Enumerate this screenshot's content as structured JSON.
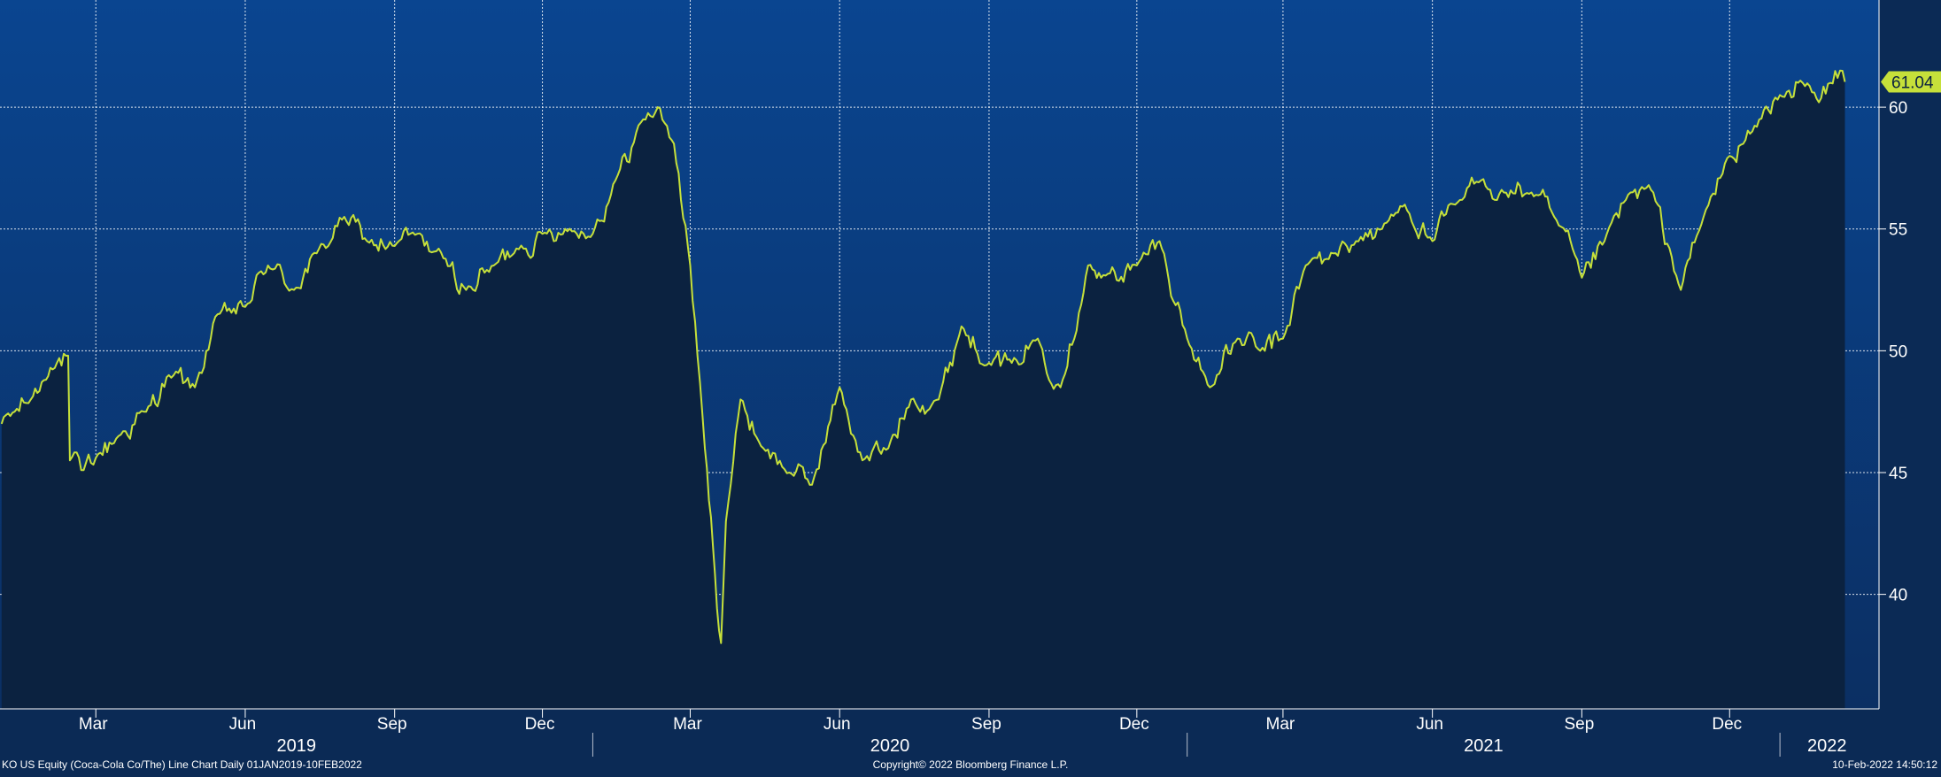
{
  "chart_data": {
    "type": "area",
    "series": [
      {
        "name": "",
        "x": [
          "2019-01-02",
          "2019-01-10",
          "2019-01-20",
          "2019-02-01",
          "2019-02-12",
          "2019-02-13",
          "2019-02-20",
          "2019-03-01",
          "2019-03-15",
          "2019-04-01",
          "2019-04-15",
          "2019-05-01",
          "2019-05-15",
          "2019-06-01",
          "2019-06-15",
          "2019-07-01",
          "2019-07-15",
          "2019-08-01",
          "2019-08-15",
          "2019-09-01",
          "2019-09-15",
          "2019-10-01",
          "2019-10-15",
          "2019-11-01",
          "2019-11-15",
          "2019-12-01",
          "2019-12-15",
          "2020-01-01",
          "2020-01-15",
          "2020-02-01",
          "2020-02-10",
          "2020-02-20",
          "2020-03-01",
          "2020-03-10",
          "2020-03-15",
          "2020-03-20",
          "2020-03-23",
          "2020-04-01",
          "2020-04-15",
          "2020-05-01",
          "2020-05-15",
          "2020-06-01",
          "2020-06-15",
          "2020-07-01",
          "2020-07-15",
          "2020-08-01",
          "2020-08-15",
          "2020-09-01",
          "2020-09-15",
          "2020-10-01",
          "2020-10-15",
          "2020-11-01",
          "2020-11-09",
          "2020-12-01",
          "2020-12-15",
          "2021-01-01",
          "2021-01-15",
          "2021-02-01",
          "2021-02-15",
          "2021-03-01",
          "2021-03-15",
          "2021-04-01",
          "2021-04-15",
          "2021-05-01",
          "2021-05-15",
          "2021-06-01",
          "2021-06-15",
          "2021-07-01",
          "2021-07-15",
          "2021-08-01",
          "2021-08-15",
          "2021-09-01",
          "2021-09-15",
          "2021-10-01",
          "2021-10-15",
          "2021-11-01",
          "2021-11-15",
          "2021-12-01",
          "2021-12-15",
          "2022-01-01",
          "2022-01-15",
          "2022-01-25",
          "2022-02-01",
          "2022-02-07",
          "2022-02-10"
        ],
        "y": [
          47.0,
          47.5,
          48.0,
          49.3,
          49.8,
          45.5,
          45.1,
          45.6,
          46.5,
          47.5,
          49.0,
          48.5,
          51.5,
          51.8,
          53.5,
          52.5,
          54.0,
          55.5,
          54.5,
          54.3,
          54.8,
          53.8,
          52.5,
          53.5,
          54.2,
          54.8,
          55.0,
          54.8,
          57.0,
          59.5,
          60.0,
          58.5,
          53.5,
          46.0,
          42.0,
          38.0,
          43.0,
          48.0,
          46.0,
          45.0,
          44.5,
          48.5,
          45.5,
          46.0,
          48.0,
          48.0,
          51.0,
          49.5,
          49.5,
          50.5,
          48.5,
          53.5,
          53.0,
          53.5,
          54.5,
          50.5,
          48.5,
          50.5,
          50.0,
          50.5,
          53.5,
          54.0,
          54.5,
          55.0,
          56.0,
          54.5,
          56.0,
          57.0,
          56.5,
          56.5,
          55.5,
          53.0,
          54.5,
          56.5,
          56.5,
          52.5,
          55.5,
          58.0,
          59.0,
          60.5,
          61.0,
          60.2,
          61.0,
          61.5,
          61.04
        ]
      }
    ],
    "last_value_label": "61.04",
    "ylim": [
      35.3,
      64.4
    ],
    "yticks": [
      40,
      45,
      50,
      55,
      60
    ],
    "ytick_labels": [
      "40",
      "45",
      "50",
      "55",
      "60"
    ],
    "month_ticks": [
      {
        "date": "2019-03-01",
        "label": "Mar"
      },
      {
        "date": "2019-06-01",
        "label": "Jun"
      },
      {
        "date": "2019-09-01",
        "label": "Sep"
      },
      {
        "date": "2019-12-01",
        "label": "Dec"
      },
      {
        "date": "2020-03-01",
        "label": "Mar"
      },
      {
        "date": "2020-06-01",
        "label": "Jun"
      },
      {
        "date": "2020-09-01",
        "label": "Sep"
      },
      {
        "date": "2020-12-01",
        "label": "Dec"
      },
      {
        "date": "2021-03-01",
        "label": "Mar"
      },
      {
        "date": "2021-06-01",
        "label": "Jun"
      },
      {
        "date": "2021-09-01",
        "label": "Sep"
      },
      {
        "date": "2021-12-01",
        "label": "Dec"
      }
    ],
    "year_labels": [
      {
        "label": "2019",
        "from": "2019-01-01",
        "to": "2020-01-01"
      },
      {
        "label": "2020",
        "from": "2020-01-01",
        "to": "2021-01-01"
      },
      {
        "label": "2021",
        "from": "2021-01-01",
        "to": "2022-01-01"
      },
      {
        "label": "2022",
        "from": "2022-01-01",
        "to": "2022-02-28"
      }
    ],
    "xlim": [
      "2019-01-01",
      "2022-03-03"
    ],
    "grid": true,
    "colors": {
      "line": "#c6e03a",
      "fill": "#0b2240",
      "background_top": "#0a4590",
      "background_bottom": "#0b2f63",
      "grid": "#ffffff",
      "text": "#ffffff",
      "label_bg": "#c6e03a",
      "label_text": "#0b2240"
    }
  },
  "footer": {
    "left": "KO US Equity (Coca-Cola Co/The) Line Chart  Daily 01JAN2019-10FEB2022",
    "center": "Copyright© 2022 Bloomberg Finance L.P.",
    "right": "10-Feb-2022 14:50:12"
  }
}
